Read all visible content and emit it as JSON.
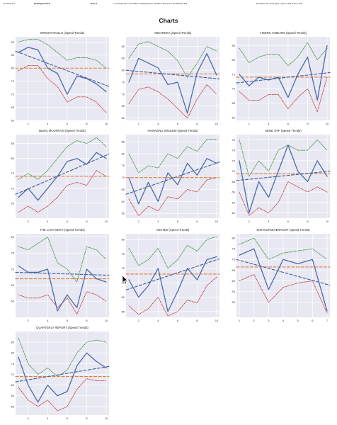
{
  "header": {
    "program": "PostTime Pro",
    "track": "Remington Park",
    "race": "Race 3",
    "conditions": "7 Furlongs Dirt Clm 1800S Claiming Purse: $20000 Claim price: $15000 (83-85)",
    "datetime": "December 02, 2025 (Day 1) 06:15 PM 6:36:11 PM"
  },
  "page_title": "Charts",
  "colors": {
    "plot_bg": "#e8e8f2",
    "grid": "#ffffff",
    "speed": "#4c6aa8",
    "trend": "#3f5c9e",
    "average": "#e07b3c",
    "upper": "#3d8c3d",
    "lower": "#c43232"
  },
  "chart_data": [
    {
      "type": "line",
      "title": "SPEIGHTSVILLE (Speed Trends)",
      "x": [
        1,
        2,
        3,
        4,
        5,
        6,
        7,
        8,
        9,
        10
      ],
      "xticks": [
        2,
        4,
        6,
        8,
        10
      ],
      "ylim": [
        60,
        92
      ],
      "yticks": [
        60,
        65,
        70,
        75,
        80,
        85,
        90
      ],
      "series": [
        {
          "role": "speed",
          "values": [
            86,
            88,
            87,
            80,
            78,
            70,
            77,
            76,
            74,
            71
          ]
        },
        {
          "role": "trend",
          "values": [
            86.5,
            85.0,
            83.5,
            82.0,
            80.5,
            79.0,
            77.5,
            76.0,
            74.5,
            73.0
          ]
        },
        {
          "role": "average",
          "values": [
            80,
            80,
            80,
            80,
            80,
            80,
            80,
            80,
            80,
            80
          ]
        },
        {
          "role": "upper",
          "values": [
            90,
            91,
            91,
            89,
            86,
            83,
            84,
            84,
            83,
            80
          ]
        },
        {
          "role": "lower",
          "values": [
            79,
            81,
            81,
            76,
            73,
            67,
            69,
            69,
            67,
            63
          ]
        }
      ]
    },
    {
      "type": "line",
      "title": "ABSAROKA (Speed Trends)",
      "x": [
        1,
        2,
        3,
        4,
        5,
        6,
        7,
        8,
        9,
        10
      ],
      "xticks": [
        2,
        4,
        6,
        8,
        10
      ],
      "ylim": [
        59,
        94
      ],
      "yticks": [
        60,
        65,
        70,
        75,
        80,
        85,
        90
      ],
      "series": [
        {
          "role": "speed",
          "values": [
            75,
            85,
            83,
            81,
            74,
            75,
            62,
            79,
            87,
            78
          ]
        },
        {
          "role": "trend",
          "values": [
            80.0,
            79.6,
            79.2,
            78.8,
            78.4,
            78.0,
            77.6,
            77.2,
            76.8,
            76.4
          ]
        },
        {
          "role": "average",
          "values": [
            78.5,
            78.5,
            78.5,
            78.5,
            78.5,
            78.5,
            78.5,
            78.5,
            78.5,
            78.5
          ]
        },
        {
          "role": "upper",
          "values": [
            85,
            91,
            92,
            90,
            88,
            84,
            77,
            83,
            90,
            88
          ]
        },
        {
          "role": "lower",
          "values": [
            66,
            72,
            73,
            71,
            68,
            64,
            60,
            68,
            74,
            70
          ]
        }
      ]
    },
    {
      "type": "line",
      "title": "TIGERS 'N BEARS (Speed Trends)",
      "x": [
        1,
        2,
        3,
        4,
        5,
        6,
        7,
        8,
        9,
        10
      ],
      "xticks": [
        2,
        4,
        6,
        8,
        10
      ],
      "ylim": [
        59,
        88
      ],
      "yticks": [
        60,
        65,
        70,
        75,
        80,
        85
      ],
      "series": [
        {
          "role": "speed",
          "values": [
            75,
            71,
            74,
            73,
            74,
            67,
            75,
            81,
            66,
            85
          ]
        },
        {
          "role": "trend",
          "values": [
            72.0,
            72.4,
            72.8,
            73.2,
            73.6,
            74.0,
            74.4,
            74.8,
            75.2,
            75.6
          ]
        },
        {
          "role": "average",
          "values": [
            74,
            74,
            74,
            74,
            74,
            74,
            74,
            74,
            74,
            74
          ]
        },
        {
          "role": "upper",
          "values": [
            84,
            79,
            81,
            82,
            82,
            78,
            81,
            86,
            80,
            84
          ]
        },
        {
          "role": "lower",
          "values": [
            69,
            66,
            66,
            68,
            68,
            63,
            67,
            70,
            62,
            74
          ]
        }
      ]
    },
    {
      "type": "line",
      "title": "BLING MOUNTAIN (Speed Trends)",
      "x": [
        1,
        2,
        3,
        4,
        5,
        6,
        7,
        8,
        9,
        10
      ],
      "xticks": [
        2,
        4,
        6,
        8,
        10
      ],
      "ylim": [
        60,
        88
      ],
      "yticks": [
        65,
        70,
        75,
        80,
        85
      ],
      "series": [
        {
          "role": "speed",
          "values": [
            67,
            70,
            66,
            70,
            74,
            79,
            80,
            78,
            82,
            80
          ]
        },
        {
          "role": "trend",
          "values": [
            68.0,
            69.5,
            71.0,
            72.5,
            74.0,
            75.5,
            77.0,
            78.5,
            80.0,
            81.5
          ]
        },
        {
          "role": "average",
          "values": [
            74,
            74,
            74,
            74,
            74,
            74,
            74,
            74,
            74,
            74
          ]
        },
        {
          "role": "upper",
          "values": [
            73,
            75,
            73,
            76,
            80,
            84,
            86,
            85,
            87,
            84
          ]
        },
        {
          "role": "lower",
          "values": [
            62,
            64,
            62,
            64,
            67,
            71,
            72,
            71,
            76,
            74
          ]
        }
      ]
    },
    {
      "type": "line",
      "title": "HAMAZING WISDOM (Speed Trends)",
      "x": [
        1,
        2,
        3,
        4,
        5,
        6,
        7,
        8,
        9,
        10
      ],
      "xticks": [
        2,
        4,
        6,
        8,
        10
      ],
      "ylim": [
        53,
        88
      ],
      "yticks": [
        55,
        60,
        65,
        70,
        75,
        80,
        85
      ],
      "series": [
        {
          "role": "speed",
          "values": [
            70,
            59,
            68,
            60,
            72,
            67,
            76,
            71,
            78,
            76
          ]
        },
        {
          "role": "trend",
          "values": [
            63.0,
            64.5,
            66.0,
            67.5,
            69.0,
            70.5,
            72.0,
            73.5,
            75.0,
            76.5
          ]
        },
        {
          "role": "average",
          "values": [
            70,
            70,
            70,
            70,
            70,
            70,
            70,
            70,
            70,
            70
          ]
        },
        {
          "role": "upper",
          "values": [
            80,
            72,
            75,
            74,
            80,
            78,
            83,
            81,
            86,
            86
          ]
        },
        {
          "role": "lower",
          "values": [
            61,
            54,
            58,
            56,
            62,
            61,
            65,
            64,
            69,
            70
          ]
        }
      ]
    },
    {
      "type": "line",
      "title": "SEND OFF (Speed Trends)",
      "x": [
        1,
        2,
        3,
        4,
        5,
        6,
        7,
        8,
        9,
        10
      ],
      "xticks": [
        2,
        4,
        6,
        8,
        10
      ],
      "ylim": [
        61,
        77
      ],
      "yticks": [
        62,
        64,
        66,
        68,
        70,
        72,
        74,
        76
      ],
      "series": [
        {
          "role": "speed",
          "values": [
            72,
            62,
            68,
            65,
            70,
            75,
            70,
            68,
            72,
            69
          ]
        },
        {
          "role": "trend",
          "values": [
            68.2,
            68.4,
            68.6,
            68.8,
            69.0,
            69.2,
            69.4,
            69.6,
            69.8,
            70.0
          ]
        },
        {
          "role": "average",
          "values": [
            69.5,
            69.5,
            69.5,
            69.5,
            69.5,
            69.5,
            69.5,
            69.5,
            69.5,
            69.5
          ]
        },
        {
          "role": "upper",
          "values": [
            76,
            69,
            72,
            70,
            74,
            75,
            74,
            74,
            76,
            74
          ]
        },
        {
          "role": "lower",
          "values": [
            66,
            61.5,
            63,
            62,
            64,
            68,
            67,
            66,
            67,
            66
          ]
        }
      ]
    },
    {
      "type": "line",
      "title": "THE LAST MOXY (Speed Trends)",
      "x": [
        1,
        2,
        3,
        4,
        5,
        6,
        7,
        8,
        9,
        10
      ],
      "xticks": [
        2,
        4,
        6,
        8,
        10
      ],
      "ylim": [
        55,
        81
      ],
      "yticks": [
        60,
        65,
        70,
        75,
        80
      ],
      "series": [
        {
          "role": "speed",
          "values": [
            71,
            69,
            69,
            70,
            57,
            62,
            58,
            70,
            67,
            66
          ]
        },
        {
          "role": "trend",
          "values": [
            69.0,
            68.9,
            68.8,
            68.7,
            68.6,
            68.5,
            68.4,
            68.3,
            68.2,
            68.1
          ]
        },
        {
          "role": "average",
          "values": [
            67,
            67,
            67,
            67,
            67,
            67,
            67,
            67,
            67,
            67
          ]
        },
        {
          "role": "upper",
          "values": [
            77,
            76,
            78,
            80,
            72,
            70,
            66,
            77,
            76,
            73
          ]
        },
        {
          "role": "lower",
          "values": [
            62,
            61,
            61,
            62,
            58,
            61,
            56,
            63,
            62,
            60
          ]
        }
      ]
    },
    {
      "type": "line",
      "title": "VESTES (Speed Trends)",
      "x": [
        1,
        2,
        3,
        4,
        5,
        6,
        7,
        8,
        9,
        10
      ],
      "xticks": [
        2,
        4,
        6,
        8,
        10
      ],
      "ylim": [
        53,
        82
      ],
      "yticks": [
        55,
        60,
        65,
        70,
        75,
        80
      ],
      "series": [
        {
          "role": "speed",
          "values": [
            66,
            60,
            64,
            70,
            55,
            62,
            70,
            66,
            73,
            74
          ]
        },
        {
          "role": "trend",
          "values": [
            62.5,
            63.7,
            64.9,
            66.1,
            67.3,
            68.5,
            69.7,
            70.9,
            72.1,
            73.3
          ]
        },
        {
          "role": "average",
          "values": [
            68,
            68,
            68,
            68,
            68,
            68,
            68,
            68,
            68,
            68
          ]
        },
        {
          "role": "upper",
          "values": [
            77,
            71,
            73,
            77,
            70,
            73,
            78,
            76,
            80,
            81
          ]
        },
        {
          "role": "lower",
          "values": [
            57,
            54,
            56,
            60,
            53.5,
            55,
            59,
            58,
            64,
            67
          ]
        }
      ]
    },
    {
      "type": "line",
      "title": "SIXHOOFSEVENHOOF (Speed Trends)",
      "x": [
        1,
        2,
        3,
        4,
        5,
        6,
        7
      ],
      "xticks": [
        1,
        2,
        3,
        4,
        5,
        6,
        7
      ],
      "ylim": [
        43,
        82
      ],
      "yticks": [
        50,
        55,
        60,
        65,
        70,
        75,
        80
      ],
      "series": [
        {
          "role": "speed",
          "values": [
            72,
            75,
            56,
            70,
            68,
            70,
            46
          ]
        },
        {
          "role": "trend",
          "values": [
            70.0,
            68.0,
            66.0,
            64.0,
            62.0,
            60.0,
            58.0
          ]
        },
        {
          "role": "average",
          "values": [
            66.5,
            66.5,
            66.5,
            66.5,
            66.5,
            66.5,
            66.5
          ]
        },
        {
          "role": "upper",
          "values": [
            77,
            80,
            70,
            73,
            74,
            75,
            70
          ]
        },
        {
          "role": "lower",
          "values": [
            60,
            63,
            50,
            57,
            59,
            60,
            45
          ]
        }
      ]
    },
    {
      "type": "line",
      "title": "QUARTERLY REPORT (Speed Trends)",
      "x": [
        1,
        2,
        3,
        4,
        5,
        6,
        7,
        8,
        9,
        10
      ],
      "xticks": [
        2,
        4,
        6,
        8,
        10
      ],
      "ylim": [
        51,
        90
      ],
      "yticks": [
        55,
        60,
        65,
        70,
        75,
        80,
        85
      ],
      "series": [
        {
          "role": "speed",
          "values": [
            78,
            65,
            57,
            65,
            60,
            62,
            74,
            80,
            76,
            73
          ]
        },
        {
          "role": "trend",
          "values": [
            66.5,
            67.3,
            68.1,
            68.9,
            69.7,
            70.5,
            71.3,
            72.1,
            72.9,
            73.7
          ]
        },
        {
          "role": "average",
          "values": [
            69,
            69,
            69,
            69,
            69,
            69,
            69,
            69,
            69,
            69
          ]
        },
        {
          "role": "upper",
          "values": [
            87,
            75,
            70,
            73,
            69,
            72,
            80,
            85,
            86,
            85
          ]
        },
        {
          "role": "lower",
          "values": [
            64,
            58,
            55,
            58,
            53,
            55,
            63,
            68,
            67,
            67
          ]
        }
      ]
    }
  ]
}
